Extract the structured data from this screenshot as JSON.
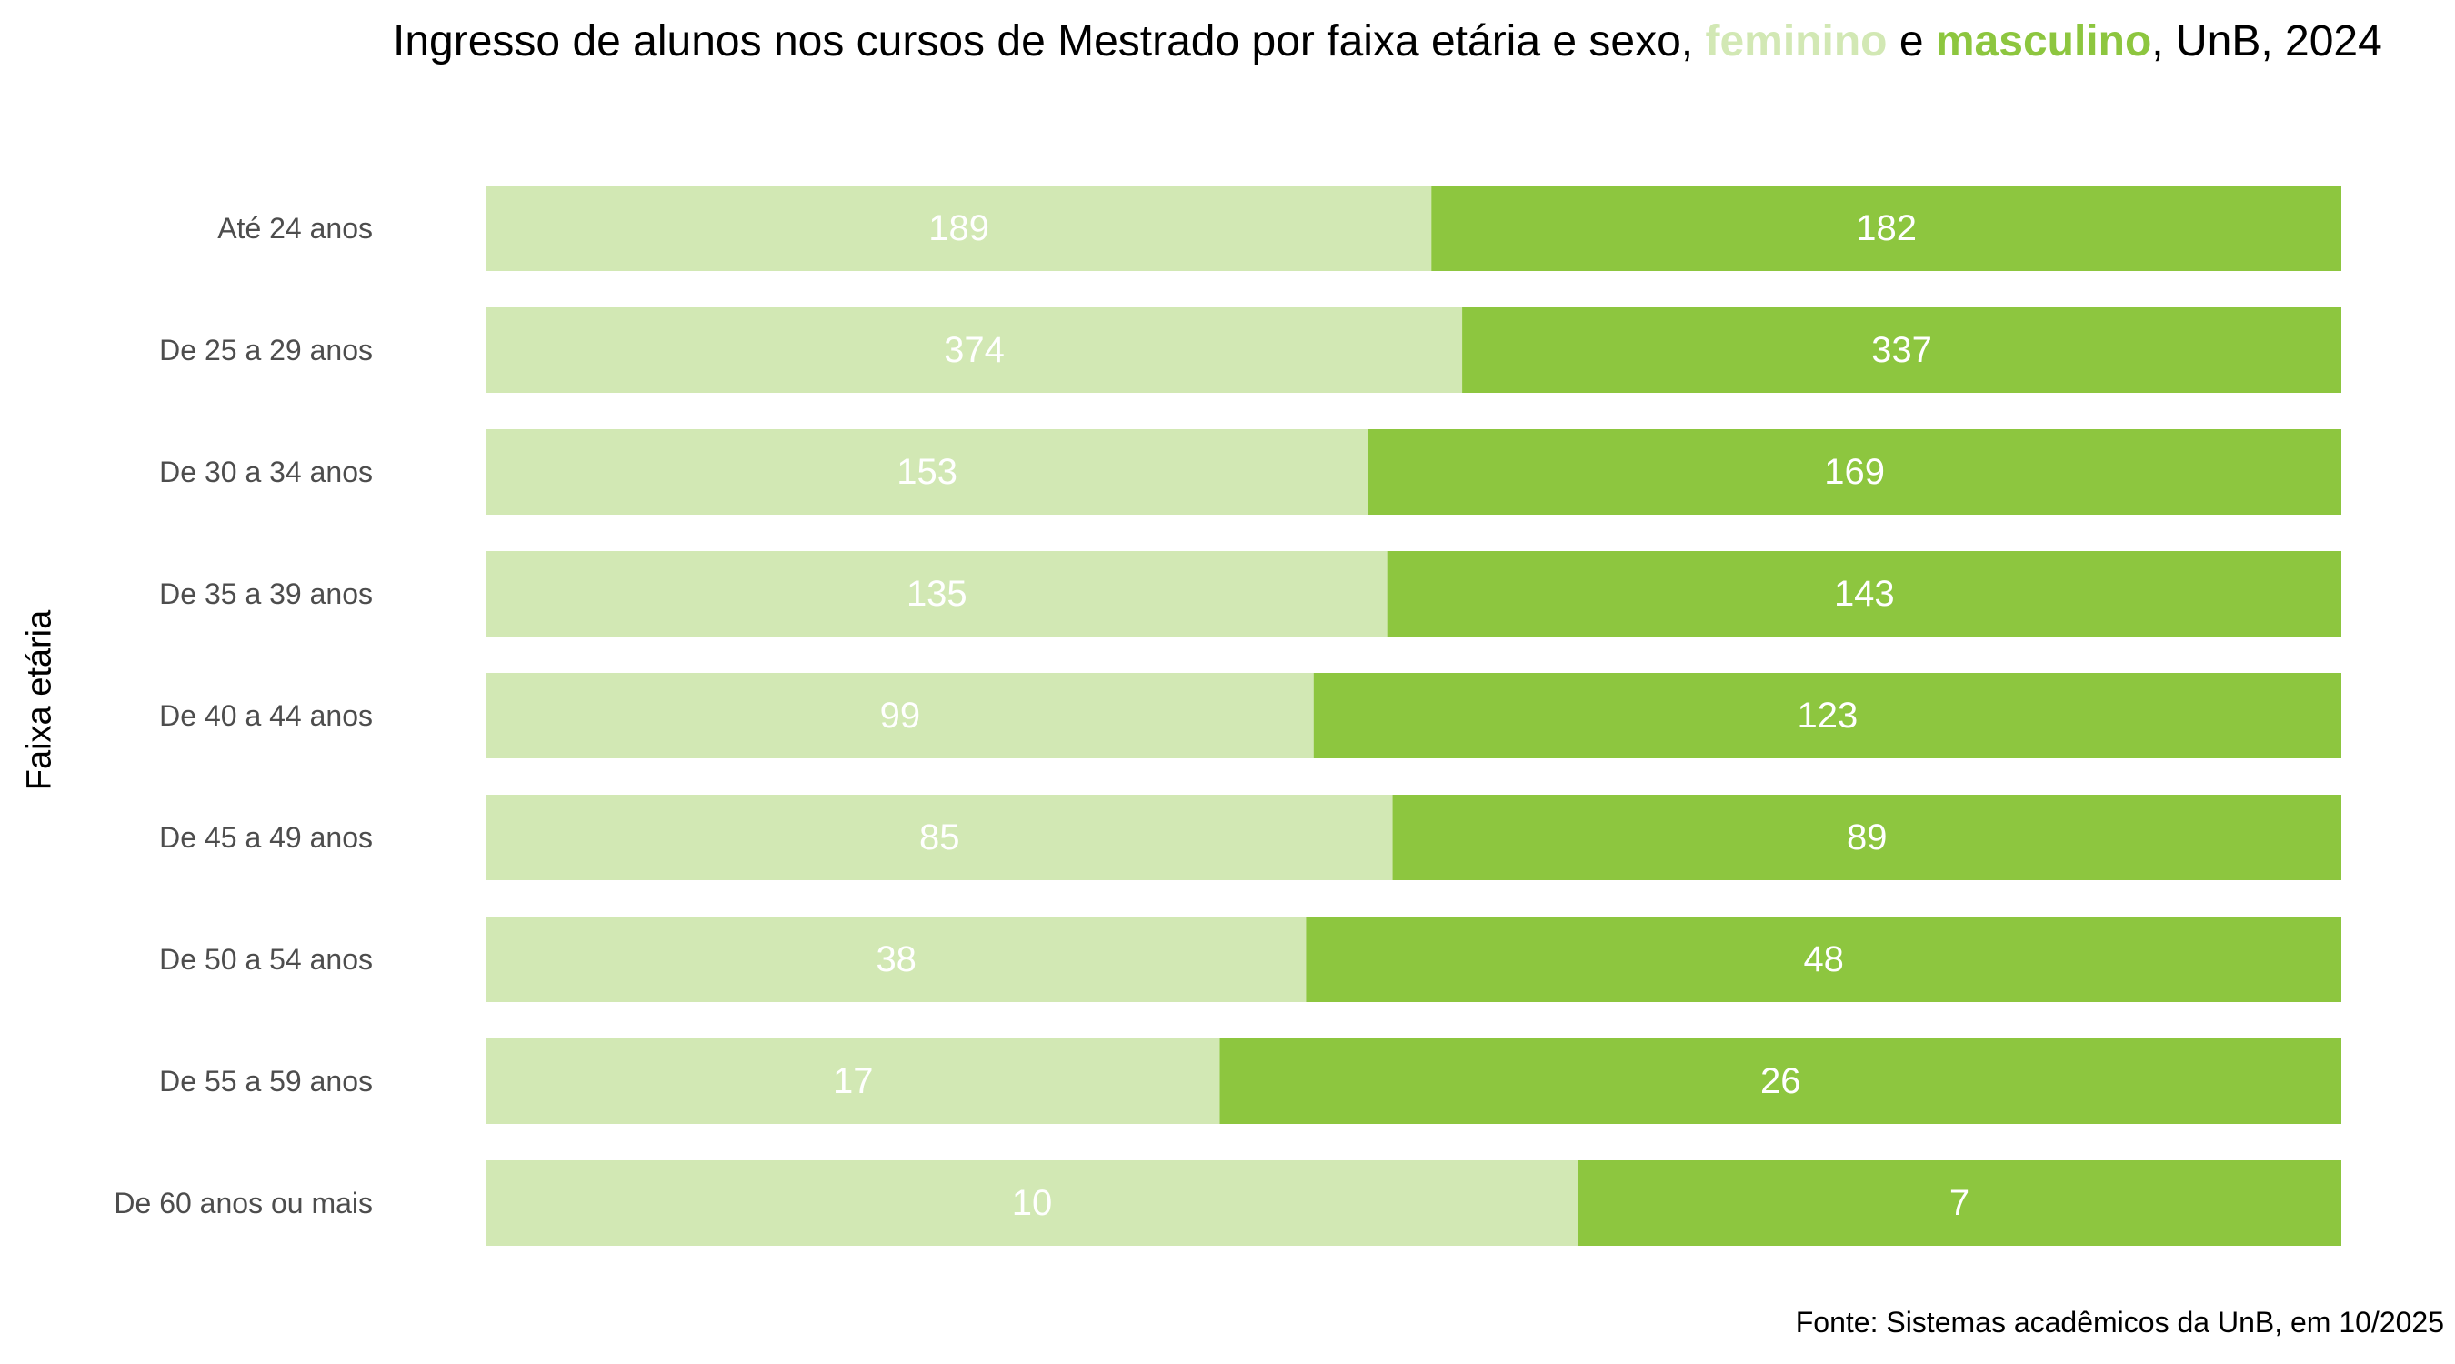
{
  "colors": {
    "feminino": "#d2e8b4",
    "masculino": "#8dc63f",
    "bar_label": "#ffffff",
    "category_label": "#4d4d4d"
  },
  "title": {
    "part1": "Ingresso de alunos nos cursos de Mestrado por faixa etária e sexo,",
    "feminino": "feminino",
    "connector": "e",
    "masculino": "masculino",
    "part2": ", UnB, 2024"
  },
  "source": "Fonte: Sistemas acadêmicos da UnB, em 10/2025",
  "chart_data": {
    "type": "bar",
    "orientation": "horizontal",
    "stacking": "percent",
    "ylabel": "Faixa etária",
    "xlabel": "",
    "grid": false,
    "categories": [
      "Até 24 anos",
      "De 25 a 29 anos",
      "De 30 a 34 anos",
      "De 35 a 39 anos",
      "De 40 a 44 anos",
      "De 45 a 49 anos",
      "De 50 a 54 anos",
      "De 55 a 59 anos",
      "De 60 anos ou mais"
    ],
    "series": [
      {
        "name": "feminino",
        "values": [
          189,
          374,
          153,
          135,
          99,
          85,
          38,
          17,
          10
        ]
      },
      {
        "name": "masculino",
        "values": [
          182,
          337,
          169,
          143,
          123,
          89,
          48,
          26,
          7
        ]
      }
    ]
  }
}
